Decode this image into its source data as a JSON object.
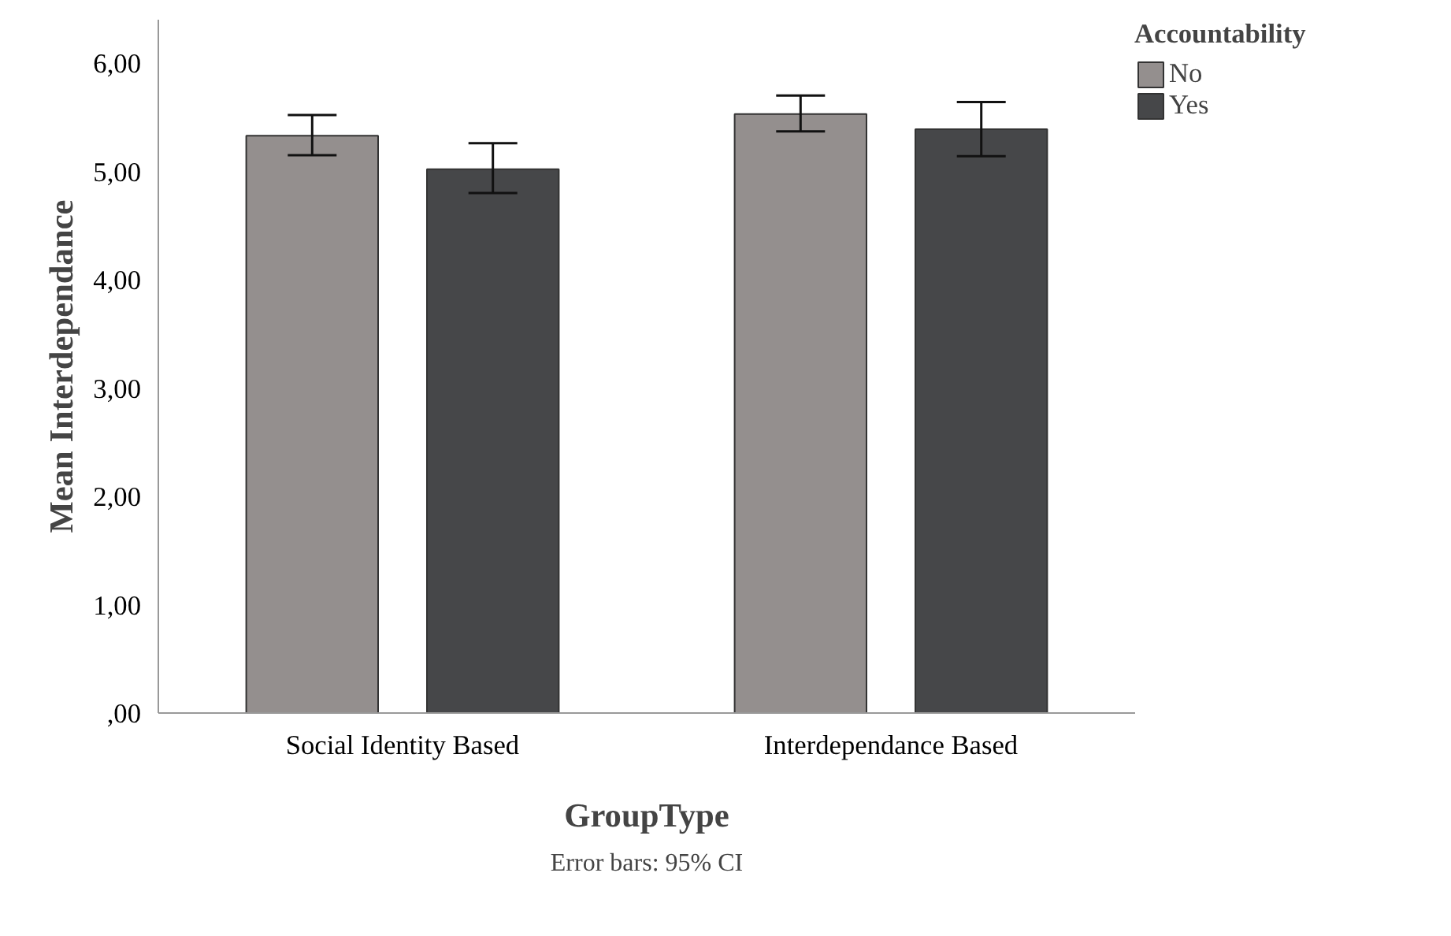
{
  "chart_data": {
    "type": "bar",
    "xlabel": "GroupType",
    "ylabel": "Mean Interdependance",
    "legend_title": "Accountability",
    "categories": [
      "Social Identity Based",
      "Interdependance Based"
    ],
    "series": [
      {
        "name": "No",
        "color": "#948f8e",
        "values": [
          5.33,
          5.53
        ],
        "errors": [
          [
            5.15,
            5.52
          ],
          [
            5.37,
            5.7
          ]
        ]
      },
      {
        "name": "Yes",
        "color": "#464749",
        "values": [
          5.02,
          5.39
        ],
        "errors": [
          [
            4.8,
            5.26
          ],
          [
            5.14,
            5.64
          ]
        ]
      }
    ],
    "ylim": [
      0,
      6.4
    ],
    "yticks": [
      {
        "value": 0,
        "label": ",00"
      },
      {
        "value": 1,
        "label": "1,00"
      },
      {
        "value": 2,
        "label": "2,00"
      },
      {
        "value": 3,
        "label": "3,00"
      },
      {
        "value": 4,
        "label": "4,00"
      },
      {
        "value": 5,
        "label": "5,00"
      },
      {
        "value": 6,
        "label": "6,00"
      }
    ],
    "grid": false,
    "legend": "top right",
    "annotations": [
      "Error bars: 95% CI"
    ]
  }
}
